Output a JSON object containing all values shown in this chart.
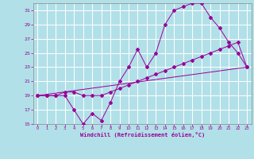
{
  "xlabel": "Windchill (Refroidissement éolien,°C)",
  "bg_color": "#b2e0e8",
  "grid_color": "#ffffff",
  "line_color": "#990099",
  "xlim": [
    -0.5,
    23.5
  ],
  "ylim": [
    15,
    32
  ],
  "xticks": [
    0,
    1,
    2,
    3,
    4,
    5,
    6,
    7,
    8,
    9,
    10,
    11,
    12,
    13,
    14,
    15,
    16,
    17,
    18,
    19,
    20,
    21,
    22,
    23
  ],
  "yticks": [
    15,
    17,
    19,
    21,
    23,
    25,
    27,
    29,
    31
  ],
  "line1_x": [
    0,
    1,
    2,
    3,
    4,
    5,
    6,
    7,
    8,
    9,
    10,
    11,
    12,
    13,
    14,
    15,
    16,
    17,
    18,
    19,
    20,
    21,
    22,
    23
  ],
  "line1_y": [
    19,
    19,
    19,
    19,
    17,
    15,
    16.5,
    15.5,
    18,
    21,
    23,
    25.5,
    23,
    25,
    29,
    31,
    31.5,
    32,
    32,
    30,
    28.5,
    26.5,
    25,
    23
  ],
  "line2_x": [
    0,
    1,
    2,
    3,
    4,
    5,
    6,
    7,
    8,
    9,
    10,
    11,
    12,
    13,
    14,
    15,
    16,
    17,
    18,
    19,
    20,
    21,
    22,
    23
  ],
  "line2_y": [
    19,
    19,
    19,
    19.5,
    19.5,
    19,
    19,
    19,
    19.5,
    20,
    20.5,
    21,
    21.5,
    22,
    22.5,
    23,
    23.5,
    24,
    24.5,
    25,
    25.5,
    26,
    26.5,
    23
  ],
  "line3_x": [
    0,
    23
  ],
  "line3_y": [
    19,
    23
  ]
}
